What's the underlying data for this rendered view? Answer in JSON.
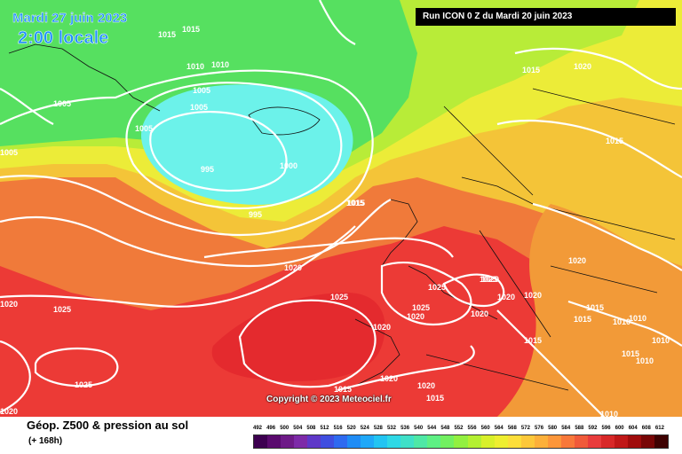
{
  "header": {
    "date": "Mardi 27 juin 2023",
    "time": "2:00 locale",
    "run": "Run ICON 0 Z du Mardi 20 juin 2023"
  },
  "footer": {
    "title": "Géop. Z500 & pression au sol",
    "lead_time": "(+ 168h)",
    "copyright": "Copyright © 2023 Meteociel.fr"
  },
  "scale": {
    "values": [
      "492",
      "496",
      "500",
      "504",
      "508",
      "512",
      "516",
      "520",
      "524",
      "528",
      "532",
      "536",
      "540",
      "544",
      "548",
      "552",
      "556",
      "560",
      "564",
      "568",
      "572",
      "576",
      "580",
      "584",
      "588",
      "592",
      "596",
      "600",
      "604",
      "608",
      "612"
    ],
    "colors": [
      "#3d0050",
      "#5a0a6e",
      "#6e1a88",
      "#7d2aa8",
      "#5e38c8",
      "#3f4ee0",
      "#2e6af0",
      "#1f8cf5",
      "#1fa8f8",
      "#22c4f2",
      "#2ed8e6",
      "#3fe0c8",
      "#4ee8a6",
      "#5ef084",
      "#72f060",
      "#92f040",
      "#b4f032",
      "#d8f02a",
      "#eeee30",
      "#fcde3a",
      "#fcc83a",
      "#fcb03a",
      "#fc963a",
      "#f8783a",
      "#f05a3a",
      "#e83c3c",
      "#d82828",
      "#c01818",
      "#a00c0c",
      "#780606",
      "#3e0202"
    ]
  },
  "isobars": [
    {
      "label": "1015"
    },
    {
      "label": "1015"
    },
    {
      "label": "1010"
    },
    {
      "label": "1010"
    },
    {
      "label": "1005"
    },
    {
      "label": "1005"
    },
    {
      "label": "1005"
    },
    {
      "label": "1005"
    },
    {
      "label": "1005"
    },
    {
      "label": "995"
    },
    {
      "label": "995"
    },
    {
      "label": "1000"
    },
    {
      "label": "1015"
    },
    {
      "label": "1020"
    },
    {
      "label": "1015"
    },
    {
      "label": "1015"
    },
    {
      "label": "1015"
    },
    {
      "label": "1020"
    },
    {
      "label": "1025"
    },
    {
      "label": "1025"
    },
    {
      "label": "1025"
    },
    {
      "label": "1025"
    },
    {
      "label": "1020"
    },
    {
      "label": "1020"
    },
    {
      "label": "1020"
    },
    {
      "label": "1020"
    },
    {
      "label": "1025"
    },
    {
      "label": "1020"
    },
    {
      "label": "1020"
    },
    {
      "label": "1015"
    },
    {
      "label": "1015"
    },
    {
      "label": "1010"
    },
    {
      "label": "1010"
    },
    {
      "label": "1010"
    },
    {
      "label": "1020"
    },
    {
      "label": "1020"
    },
    {
      "label": "1015"
    },
    {
      "label": "1015"
    },
    {
      "label": "1015"
    },
    {
      "label": "1010"
    },
    {
      "label": "1010"
    },
    {
      "label": "1020"
    },
    {
      "label": "1025"
    },
    {
      "label": "1020"
    },
    {
      "label": "1015"
    },
    {
      "label": "1020"
    }
  ]
}
